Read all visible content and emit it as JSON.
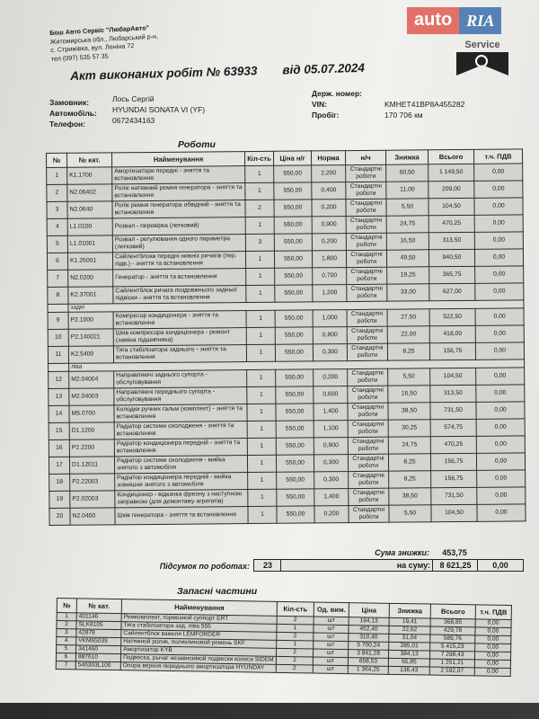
{
  "company": {
    "name": "Бош Авто Сервіс \"ЛюбарАвто\"",
    "address1": "Житомирська обл., Любарський р-н,",
    "address2": "с. Стрижівка, вул. Леніна 72",
    "phone": "тел (097) 535 57 35"
  },
  "logos": {
    "bosch_text": "Service",
    "autoria_auto": "auto",
    "autoria_ria": "RIA"
  },
  "document": {
    "title": "Акт виконаних робіт № 63933",
    "date": "від 05.07.2024"
  },
  "customer": {
    "customer_label": "Замовник:",
    "customer_value": "Лось Сергій",
    "car_label": "Автомобіль:",
    "car_value": "HYUNDAI SONATA VI (YF)",
    "phone_label": "Телефон:",
    "phone_value": "0672434163",
    "plate_label": "Держ. номер:",
    "plate_value": "",
    "vin_label": "VIN:",
    "vin_value": "KMHET41BP8A455282",
    "mileage_label": "Пробіг:",
    "mileage_value": "170 706 км"
  },
  "works": {
    "title": "Роботи",
    "headers": [
      "№",
      "№ кат.",
      "Найменування",
      "Кіл-сть",
      "Ціна н/г",
      "Норма",
      "н/ч",
      "Знижка",
      "Всього",
      "т.ч. ПДВ"
    ],
    "rows": [
      {
        "n": "1",
        "cat": "K1.1700",
        "name": "Амортизатори передні - зняття та встановлення",
        "qty": "1",
        "price": "550,00",
        "norm": "2,200",
        "type": "Стандартні роботи",
        "disc": "60,50",
        "total": "1 149,50",
        "vat": "0,00"
      },
      {
        "n": "2",
        "cat": "N2.06402",
        "name": "Ролік натяжний ремня генератора - зняття та встановлення",
        "qty": "1",
        "price": "550,00",
        "norm": "0,400",
        "type": "Стандартні роботи",
        "disc": "11,00",
        "total": "209,00",
        "vat": "0,00"
      },
      {
        "n": "3",
        "cat": "N2.0640",
        "name": "Ролік ремня генератора обвідний - зняття та встановлення",
        "qty": "2",
        "price": "550,00",
        "norm": "0,200",
        "type": "Стандартні роботи",
        "disc": "5,50",
        "total": "104,50",
        "vat": "0,00"
      },
      {
        "n": "4",
        "cat": "L1.0100",
        "name": "Розвал - перевірка (легковий)",
        "qty": "1",
        "price": "550,00",
        "norm": "0,900",
        "type": "Стандартні роботи",
        "disc": "24,75",
        "total": "470,25",
        "vat": "0,00"
      },
      {
        "n": "5",
        "cat": "L1.01001",
        "name": "Розвал - регулювання одного параметра (легковий)",
        "qty": "3",
        "price": "550,00",
        "norm": "0,200",
        "type": "Стандартні роботи",
        "disc": "16,50",
        "total": "313,50",
        "vat": "0,00"
      },
      {
        "n": "6",
        "cat": "K1.26001",
        "name": "Сайлентблоки передні нижніх ричагів (пер. підв.) - зняття та встановлення",
        "qty": "1",
        "price": "550,00",
        "norm": "1,800",
        "type": "Стандартні роботи",
        "disc": "49,50",
        "total": "940,50",
        "vat": "0,00"
      },
      {
        "n": "7",
        "cat": "N2.0200",
        "name": "Генератор - зняття та встановлення",
        "qty": "1",
        "price": "550,00",
        "norm": "0,700",
        "type": "Стандартні роботи",
        "disc": "19,25",
        "total": "365,75",
        "vat": "0,00"
      },
      {
        "n": "8",
        "cat": "K2.37001",
        "name": "Сайлентблок ричага поздовжнього задньої підвіски - зняття та встановлення",
        "qty": "1",
        "price": "550,00",
        "norm": "1,200",
        "type": "Стандартні роботи",
        "disc": "33,00",
        "total": "627,00",
        "vat": "0,00"
      },
      {
        "section": "задні"
      },
      {
        "n": "9",
        "cat": "P2.1000",
        "name": "Компресор кондиціонера - зняття та встановлення",
        "qty": "1",
        "price": "550,00",
        "norm": "1,000",
        "type": "Стандартні роботи",
        "disc": "27,50",
        "total": "522,50",
        "vat": "0,00"
      },
      {
        "n": "10",
        "cat": "P2.140021",
        "name": "Шків компресора кондиціонера - ремонт (заміна підшипника)",
        "qty": "1",
        "price": "550,00",
        "norm": "0,800",
        "type": "Стандартні роботи",
        "disc": "22,00",
        "total": "418,00",
        "vat": "0,00"
      },
      {
        "n": "11",
        "cat": "K2.5400",
        "name": "Тяга стабілізатора заднього - зняття та встановлення",
        "qty": "1",
        "price": "550,00",
        "norm": "0,300",
        "type": "Стандартні роботи",
        "disc": "8,25",
        "total": "156,75",
        "vat": "0,00"
      },
      {
        "section": "ліва"
      },
      {
        "n": "12",
        "cat": "M2.04004",
        "name": "Направляючі заднього супорта - обслуговування",
        "qty": "1",
        "price": "550,00",
        "norm": "0,200",
        "type": "Стандартні роботи",
        "disc": "5,50",
        "total": "104,50",
        "vat": "0,00"
      },
      {
        "n": "13",
        "cat": "M2.04003",
        "name": "Направляючі переднього супорта - обслуговування",
        "qty": "1",
        "price": "550,00",
        "norm": "0,600",
        "type": "Стандартні роботи",
        "disc": "16,50",
        "total": "313,50",
        "vat": "0,00"
      },
      {
        "n": "14",
        "cat": "M5.0700",
        "name": "Колодки ручних гальм (комплект) - зняття та встановлення",
        "qty": "1",
        "price": "550,00",
        "norm": "1,400",
        "type": "Стандартні роботи",
        "disc": "38,50",
        "total": "731,50",
        "vat": "0,00"
      },
      {
        "n": "15",
        "cat": "D1.1200",
        "name": "Радіатор системи охолодженя - зняття та встановлення",
        "qty": "1",
        "price": "550,00",
        "norm": "1,100",
        "type": "Стандартні роботи",
        "disc": "30,25",
        "total": "574,75",
        "vat": "0,00"
      },
      {
        "n": "16",
        "cat": "P2.2200",
        "name": "Радіатор кондиціонера передній - зняття та встановлення",
        "qty": "1",
        "price": "550,00",
        "norm": "0,900",
        "type": "Стандартні роботи",
        "disc": "24,75",
        "total": "470,25",
        "vat": "0,00"
      },
      {
        "n": "17",
        "cat": "D1.12011",
        "name": "Радіатор системи охолодженя - мийка знятого з автомобіля",
        "qty": "1",
        "price": "550,00",
        "norm": "0,300",
        "type": "Стандартні роботи",
        "disc": "8,25",
        "total": "156,75",
        "vat": "0,00"
      },
      {
        "n": "18",
        "cat": "P2.22003",
        "name": "Радіатор кондиціонера передній - мийка зовнішня знятого з автомобіля",
        "qty": "1",
        "price": "550,00",
        "norm": "0,300",
        "type": "Стандартні роботи",
        "disc": "8,25",
        "total": "156,75",
        "vat": "0,00"
      },
      {
        "n": "19",
        "cat": "P2.02003",
        "name": "Кондиціонер - відкачка фреону з наступною заправкою (для демонтажу агрегатів)",
        "qty": "1",
        "price": "550,00",
        "norm": "1,400",
        "type": "Стандартні роботи",
        "disc": "38,50",
        "total": "731,50",
        "vat": "0,00"
      },
      {
        "n": "20",
        "cat": "N2.0400",
        "name": "Шків генератора - зняття та встановлення",
        "qty": "1",
        "price": "550,00",
        "norm": "0,200",
        "type": "Стандартні роботи",
        "disc": "5,50",
        "total": "104,50",
        "vat": "0,00"
      }
    ],
    "discount_label": "Сума знижки:",
    "discount_value": "453,75",
    "summary_label": "Підсумок по роботах:",
    "summary_count": "23",
    "sum_label": "на суму:",
    "sum_value": "8 621,25",
    "sum_vat": "0,00"
  },
  "parts": {
    "title": "Запасні частини",
    "headers": [
      "№",
      "№ кат.",
      "Найменування",
      "Кіл-сть",
      "Од. вим.",
      "Ціна",
      "Знижка",
      "Всього",
      "т.ч. ПДВ"
    ],
    "rows": [
      {
        "n": "1",
        "cat": "401146",
        "name": "Ремкомплект, тормозной суппорт ERT",
        "qty": "2",
        "unit": "шт",
        "price": "194,13",
        "disc": "19,41",
        "total": "368,85",
        "vat": "0,00"
      },
      {
        "n": "2",
        "cat": "SLK8105",
        "name": "Тяга стабілізатора зад. ліва 555",
        "qty": "1",
        "unit": "шт",
        "price": "452,40",
        "disc": "22,62",
        "total": "429,78",
        "vat": "0,00"
      },
      {
        "n": "3",
        "cat": "42878",
        "name": "Сайлентблок важеля LEMFORDER",
        "qty": "2",
        "unit": "шт",
        "price": "310,40",
        "disc": "31,04",
        "total": "589,76",
        "vat": "0,00"
      },
      {
        "n": "4",
        "cat": "VKM65039",
        "name": "Натяжной ролик, поликлиновой ремень SKF",
        "qty": "1",
        "unit": "шт",
        "price": "5 700,24",
        "disc": "285,01",
        "total": "5 415,23",
        "vat": "0,00"
      },
      {
        "n": "5",
        "cat": "341460",
        "name": "Амортизатор KYB",
        "qty": "2",
        "unit": "шт",
        "price": "3 841,28",
        "disc": "384,13",
        "total": "7 298,43",
        "vat": "0,00"
      },
      {
        "n": "6",
        "cat": "887610",
        "name": "Подвеска, рычаг независимой подвески колеса SIDEM",
        "qty": "2",
        "unit": "шт",
        "price": "658,53",
        "disc": "65,85",
        "total": "1 251,21",
        "vat": "0,00"
      },
      {
        "n": "7",
        "cat": "546303L100",
        "name": "Опора верхня переднього амортизатора HYUNDAY",
        "qty": "2",
        "unit": "шт",
        "price": "1 364,25",
        "disc": "136,43",
        "total": "2 592,07",
        "vat": "0,00"
      }
    ]
  }
}
